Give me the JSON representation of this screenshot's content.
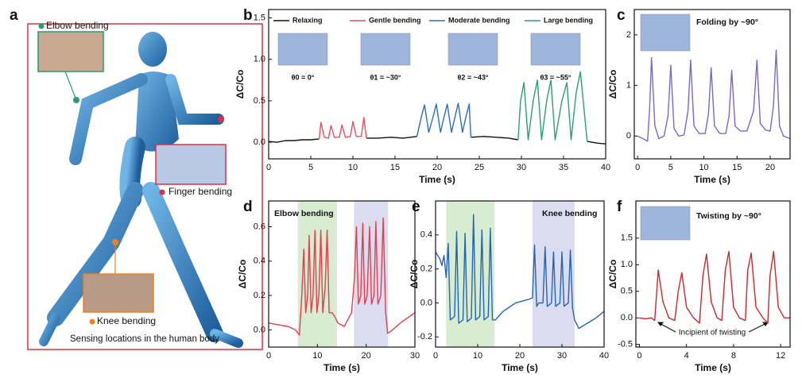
{
  "figure": {
    "panel_label": "a",
    "labels": [
      {
        "text": "Elbow bending",
        "color": "#2a9a70"
      },
      {
        "text": "Finger bending",
        "color": "#e03040"
      },
      {
        "text": "Knee bending",
        "color": "#f08020"
      }
    ],
    "caption": "Sensing locations in the human body"
  },
  "chart_data": [
    {
      "type": "line",
      "panel_label": "b",
      "xlabel": "Time (s)",
      "ylabel": "ΔC/Co",
      "xlim": [
        0,
        40
      ],
      "ylim": [
        -0.2,
        1.6
      ],
      "xticks": [
        0,
        5,
        10,
        15,
        20,
        25,
        30,
        35,
        40
      ],
      "yticks": [
        {
          "value": 0,
          "label": "0.0"
        },
        0.5,
        {
          "value": 1,
          "label": "1.0"
        },
        1.5
      ],
      "legend": "top",
      "series": [
        {
          "name": "Relaxing",
          "color": "#111111",
          "x": [
            0,
            1,
            2,
            3,
            4,
            5,
            6,
            6,
            11.6,
            13,
            14.5,
            16,
            17.6,
            17.6,
            24,
            25.5,
            27,
            28.5,
            29.6,
            29.6,
            37.8,
            39,
            40
          ],
          "values": [
            0.01,
            0.0,
            0.02,
            0.02,
            0.03,
            0.03,
            0.04,
            null,
            0.05,
            0.05,
            0.06,
            0.05,
            0.07,
            null,
            0.06,
            0.07,
            0.06,
            0.05,
            0.03,
            null,
            0.01,
            -0.01,
            -0.02
          ]
        },
        {
          "name": "Gentle bending",
          "color": "#e8505a",
          "x": [
            6,
            6.2,
            6.6,
            7.1,
            7.4,
            7.8,
            8.4,
            8.7,
            9.1,
            9.7,
            10,
            10.4,
            11,
            11.3,
            11.6
          ],
          "values": [
            0.04,
            0.24,
            0.06,
            0.05,
            0.2,
            0.06,
            0.06,
            0.21,
            0.06,
            0.07,
            0.25,
            0.07,
            0.07,
            0.3,
            0.05
          ]
        },
        {
          "name": "Moderate bending",
          "color": "#2b70b5",
          "x": [
            17.6,
            18.1,
            18.5,
            19,
            19.5,
            19.9,
            20.4,
            20.8,
            21.2,
            21.7,
            22.1,
            22.5,
            23,
            23.4,
            23.8,
            24
          ],
          "values": [
            0.07,
            0.3,
            0.45,
            0.12,
            0.3,
            0.46,
            0.12,
            0.3,
            0.46,
            0.12,
            0.3,
            0.47,
            0.12,
            0.3,
            0.46,
            0.06
          ]
        },
        {
          "name": "Large bending",
          "color": "#2aa072",
          "x": [
            29.6,
            29.9,
            30.3,
            30.8,
            31.4,
            31.9,
            32.4,
            33,
            33.5,
            34,
            34.8,
            35.4,
            35.9,
            36.5,
            37,
            37.8
          ],
          "values": [
            0.03,
            0.5,
            0.72,
            0.03,
            0.5,
            0.75,
            0.03,
            0.5,
            0.75,
            0.03,
            0.5,
            0.72,
            0.03,
            0.6,
            0.85,
            0.01
          ]
        }
      ],
      "annotations": [
        {
          "text": "θ0 = 0°",
          "color": "#111111"
        },
        {
          "text": "θ1 = ~30°",
          "color": "#e8505a"
        },
        {
          "text": "θ2 = ~43°",
          "color": "#2b70b5"
        },
        {
          "text": "θ3 = ~55°",
          "color": "#2aa072"
        }
      ]
    },
    {
      "type": "line",
      "panel_label": "c",
      "title": "Folding by ~90°",
      "xlabel": "Time (s)",
      "ylabel": "ΔC/Co",
      "xlim": [
        -0.5,
        23
      ],
      "ylim": [
        -0.45,
        2.5
      ],
      "xticks": [
        0,
        5,
        10,
        15,
        20
      ],
      "yticks": [
        0,
        1,
        2
      ],
      "color": "#7b68c4",
      "x": [
        0,
        0.8,
        1.5,
        1.8,
        2.1,
        2.6,
        3.2,
        4,
        4.6,
        5,
        5.5,
        6.2,
        7,
        7.6,
        8,
        8.5,
        9.3,
        10.2,
        10.7,
        11.1,
        11.6,
        12.4,
        13.3,
        13.8,
        14.2,
        14.7,
        15.5,
        16.5,
        17.5,
        18,
        18.5,
        19.3,
        20,
        20.5,
        20.9,
        21.4,
        22,
        23
      ],
      "values": [
        0.0,
        -0.05,
        -0.1,
        0.5,
        1.55,
        0.2,
        -0.05,
        0.0,
        0.4,
        1.4,
        0.15,
        0.0,
        0.02,
        0.5,
        1.5,
        0.2,
        0.05,
        0.05,
        0.45,
        1.35,
        0.2,
        0.05,
        0.05,
        0.4,
        1.3,
        0.2,
        0.1,
        0.1,
        0.5,
        1.5,
        0.25,
        0.12,
        0.1,
        0.6,
        1.7,
        0.2,
        0.0,
        -0.05
      ]
    },
    {
      "type": "line",
      "panel_label": "d",
      "title": "Elbow bending",
      "xlabel": "Time (s)",
      "ylabel": "ΔC/Co",
      "xlim": [
        0,
        30
      ],
      "ylim": [
        -0.1,
        0.75
      ],
      "xticks": [
        0,
        10,
        20,
        30
      ],
      "yticks": [
        {
          "value": 0,
          "label": "0.0"
        },
        0.2,
        0.4,
        0.6
      ],
      "shaded_regions": [
        {
          "x": [
            6,
            14
          ],
          "color": "#d8ecd2"
        },
        {
          "x": [
            17.5,
            24.5
          ],
          "color": "#dcdcf0"
        }
      ],
      "color": "#e0404e",
      "x": [
        0,
        2,
        4,
        5.5,
        6.3,
        6.8,
        7.2,
        7.6,
        8,
        8.3,
        8.7,
        9.1,
        9.5,
        9.9,
        10.3,
        10.7,
        11.1,
        11.6,
        12,
        12.4,
        13,
        13.5,
        14.2,
        15.5,
        17,
        17.6,
        18,
        18.4,
        18.9,
        19.3,
        19.7,
        20.2,
        20.7,
        21.1,
        21.6,
        22,
        22.4,
        23,
        23.5,
        24,
        24.4,
        25,
        27,
        29,
        30
      ],
      "values": [
        0.04,
        0.03,
        0.02,
        0.0,
        -0.03,
        0.2,
        0.47,
        0.1,
        0.2,
        0.55,
        0.1,
        0.2,
        0.58,
        0.1,
        0.2,
        0.58,
        0.1,
        0.25,
        0.58,
        0.1,
        0.1,
        0.08,
        0.04,
        0.02,
        0.1,
        0.3,
        0.6,
        0.15,
        0.2,
        0.62,
        0.15,
        0.2,
        0.6,
        0.15,
        0.2,
        0.63,
        0.15,
        0.2,
        0.65,
        0.1,
        -0.02,
        -0.01,
        0.04,
        0.08,
        0.1
      ]
    },
    {
      "type": "line",
      "panel_label": "e",
      "title": "Knee bending",
      "xlabel": "Time (s)",
      "ylabel": "ΔC/Co",
      "xlim": [
        0,
        40
      ],
      "ylim": [
        -0.26,
        0.6
      ],
      "xticks": [
        0,
        10,
        20,
        30,
        40
      ],
      "yticks": [
        -0.2,
        {
          "value": 0,
          "label": "0.0"
        },
        0.2,
        0.4
      ],
      "shaded_regions": [
        {
          "x": [
            2.5,
            14
          ],
          "color": "#d8ecd2"
        },
        {
          "x": [
            23,
            33
          ],
          "color": "#dcdcf0"
        }
      ],
      "color": "#2266b0",
      "x": [
        0,
        0.5,
        1,
        1.5,
        2,
        2.5,
        3,
        3.5,
        4.5,
        5,
        5.5,
        6.5,
        7,
        7.5,
        8.5,
        9,
        9.5,
        10.5,
        11,
        11.5,
        12.5,
        13,
        13.5,
        14.2,
        16,
        19,
        22,
        23,
        23.5,
        24,
        24.5,
        25.5,
        26,
        26.5,
        27.5,
        28,
        28.5,
        29.5,
        30,
        30.5,
        31.5,
        32,
        32.5,
        33,
        34,
        36,
        38,
        40
      ],
      "values": [
        0.3,
        0.28,
        0.26,
        0.22,
        0.28,
        0.15,
        0.35,
        -0.1,
        -0.08,
        0.42,
        -0.12,
        -0.1,
        0.41,
        -0.11,
        -0.09,
        0.52,
        -0.1,
        -0.08,
        0.43,
        -0.1,
        -0.08,
        0.44,
        -0.1,
        -0.1,
        -0.05,
        0.0,
        0.02,
        0.03,
        0.34,
        -0.02,
        0.0,
        0.0,
        0.33,
        -0.02,
        0.0,
        0.3,
        -0.02,
        0.0,
        0.3,
        -0.02,
        0.0,
        0.31,
        -0.03,
        -0.1,
        -0.15,
        -0.12,
        -0.09,
        -0.05
      ]
    },
    {
      "type": "line",
      "panel_label": "f",
      "title": "Twisting by ~90°",
      "annotation": "Incipient of twisting",
      "xlabel": "Time (s)",
      "ylabel": "ΔC/Co",
      "xlim": [
        -0.3,
        12.8
      ],
      "ylim": [
        -0.55,
        2.2
      ],
      "xticks": [
        0,
        4,
        8,
        12
      ],
      "yticks": [
        -0.5,
        {
          "value": 0,
          "label": "0.0"
        },
        0.5,
        {
          "value": 1,
          "label": "1.0"
        },
        1.5
      ],
      "color": "#c8282e",
      "x": [
        0,
        0.5,
        1,
        1.3,
        1.6,
        2,
        2.5,
        3,
        3.3,
        3.6,
        4,
        4.6,
        5.1,
        5.4,
        5.7,
        6.1,
        6.6,
        7,
        7.3,
        7.6,
        8,
        8.5,
        9,
        9.2,
        9.5,
        9.9,
        10.5,
        10.9,
        11.1,
        11.4,
        11.8,
        12.3,
        12.8
      ],
      "values": [
        0.0,
        -0.02,
        0.0,
        -0.05,
        0.9,
        0.3,
        0.0,
        -0.05,
        0.5,
        0.85,
        0.2,
        0.0,
        -0.1,
        0.8,
        1.2,
        0.3,
        0.0,
        -0.05,
        0.9,
        1.25,
        0.2,
        0.0,
        -0.05,
        0.9,
        1.22,
        0.2,
        0.0,
        -0.1,
        0.8,
        1.25,
        0.2,
        0.0,
        0.0
      ]
    }
  ]
}
